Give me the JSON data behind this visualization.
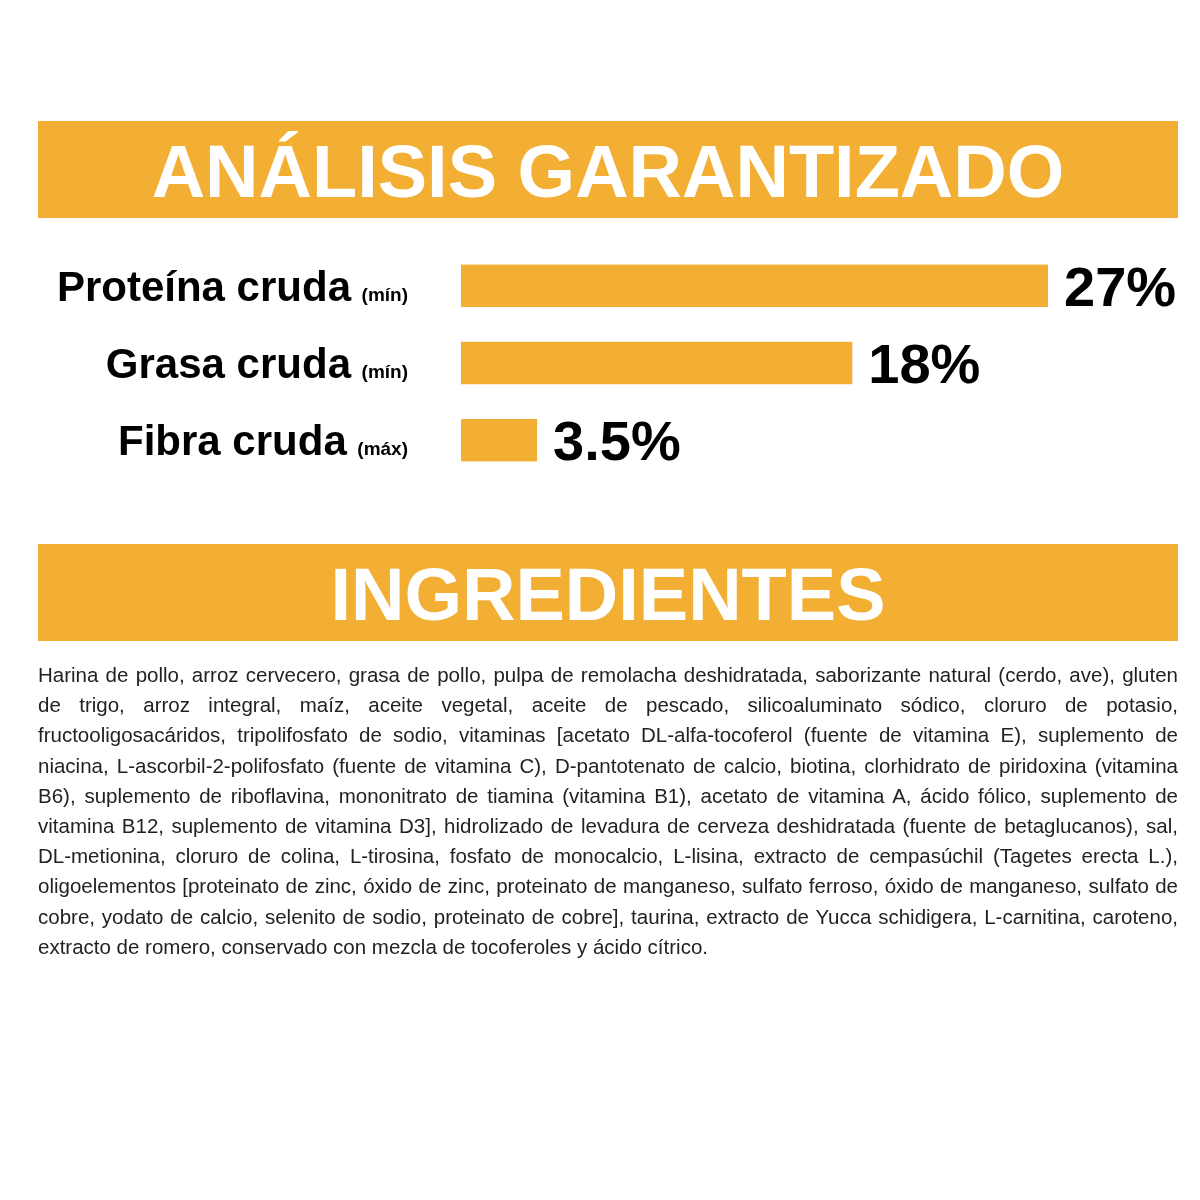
{
  "chart_data": {
    "type": "bar",
    "title": "ANÁLISIS GARANTIZADO",
    "orientation": "horizontal",
    "color": "#f2af34",
    "categories": [
      "Proteína cruda (mín)",
      "Grasa cruda (mín)",
      "Fibra cruda (máx)"
    ],
    "values": [
      27,
      18,
      3.5
    ],
    "value_labels": [
      "27%",
      "18%",
      "3.5%"
    ],
    "annotations": [
      "INGREDIENTES",
      "Harina de pollo, arroz cervecero, grasa de pollo, pulpa de remolacha deshidratada, saborizante natural (cerdo, ave), gluten de trigo, arroz integral, maíz, aceite vegetal, aceite de pescado, silicoaluminato sódico, cloruro de potasio, fructooligosacáridos, tripolifosfato de sodio, vitaminas [acetato DL-alfa-tocoferol (fuente de vitamina E), suplemento de niacina, L-ascorbil-2-polifosfato (fuente de vitamina C), D-pantotenato de calcio, biotina, clorhidrato de piridoxina (vitamina B6), suplemento de riboflavina, mononitrato de tiamina (vitamina B1), acetato de vitamina A, ácido fólico, suplemento de vitamina B12, suplemento de vitamina D3], hidrolizado de levadura de cerveza deshidratada (fuente de betaglucanos), sal, DL-metionina, cloruro de colina, L-tirosina, fosfato de monocalcio, L-lisina, extracto de cempasúchil (Tagetes erecta L.), oligoelementos [proteinato de zinc, óxido de zinc, proteinato de manganeso, sulfato ferroso, óxido de manganeso, sulfato de cobre, yodato de calcio, selenito de sodio, proteinato de cobre], taurina, extracto de Yucca schidigera, L-carnitina, caroteno, extracto de romero, conservado con mezcla de tocoferoles y ácido cítrico."
    ]
  }
}
